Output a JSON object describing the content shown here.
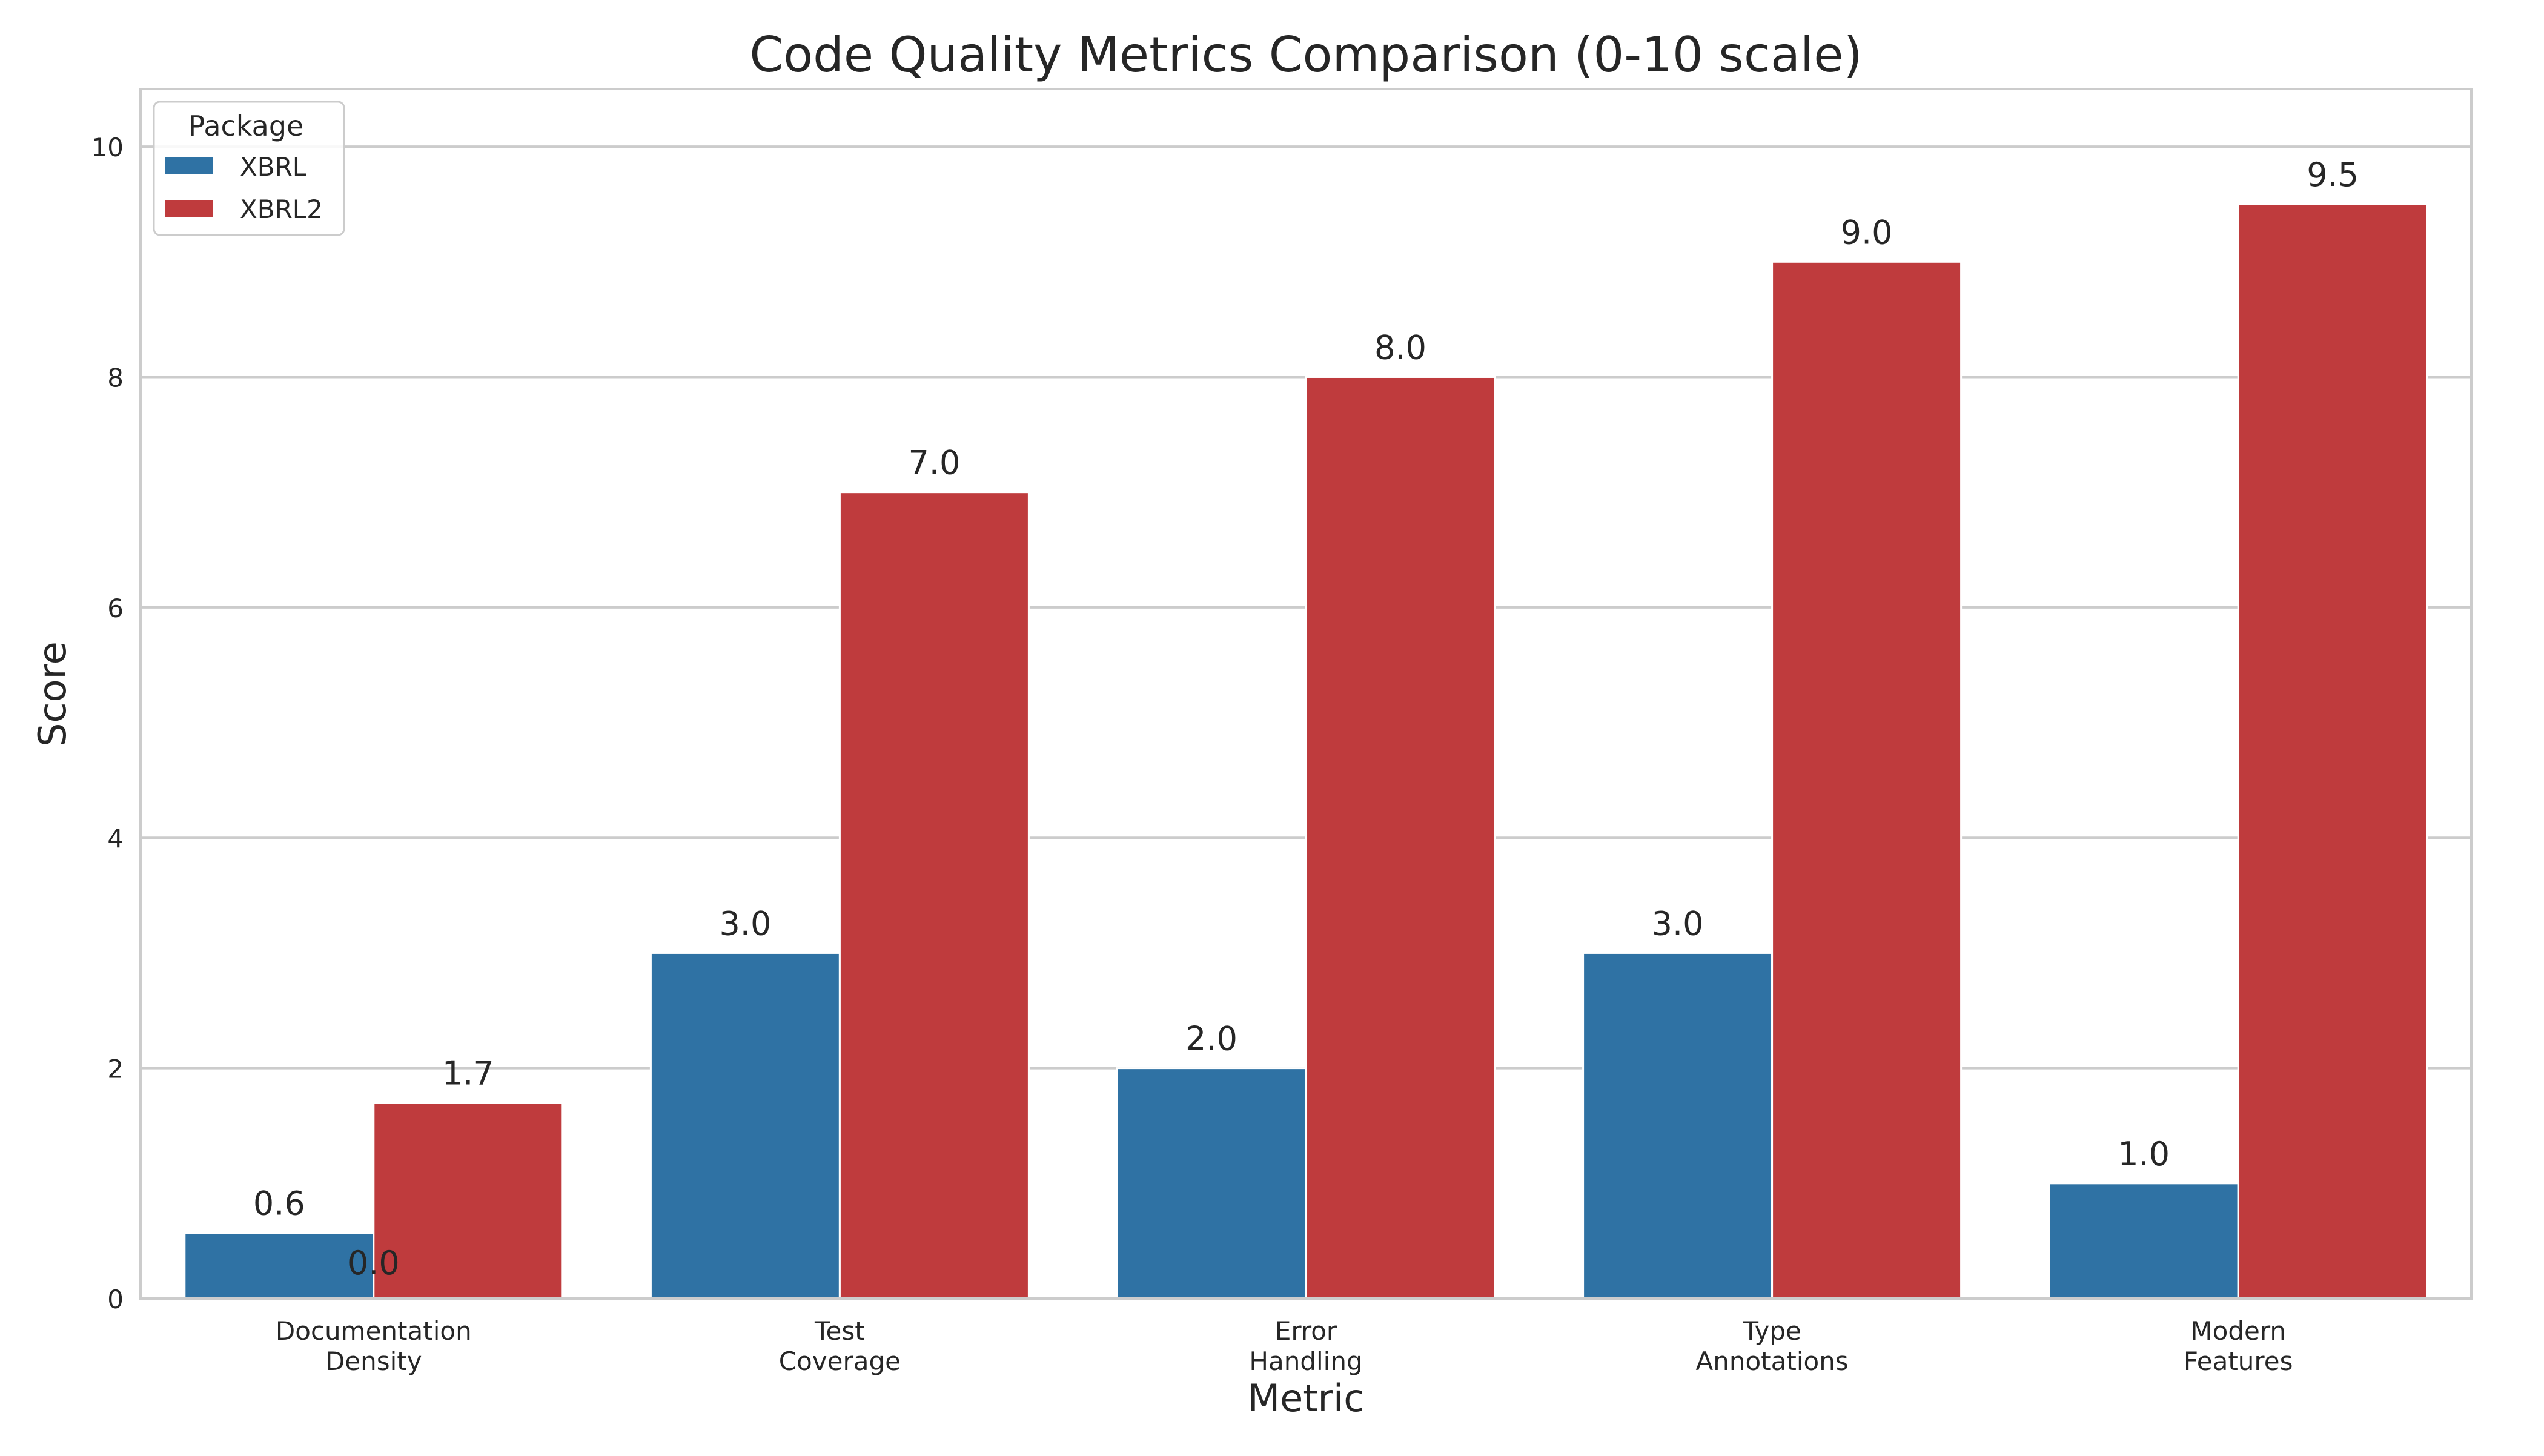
{
  "chart_data": {
    "type": "bar",
    "title": "Code Quality Metrics Comparison (0-10 scale)",
    "xlabel": "Metric",
    "ylabel": "Score",
    "categories": [
      [
        "Documentation",
        "Density"
      ],
      [
        "Test",
        "Coverage"
      ],
      [
        "Error",
        "Handling"
      ],
      [
        "Type",
        "Annotations"
      ],
      [
        "Modern",
        "Features"
      ]
    ],
    "series": [
      {
        "name": "XBRL",
        "color": "#2f72a4",
        "values": [
          0.57,
          3.0,
          2.0,
          3.0,
          1.0
        ],
        "labels": [
          "0.6",
          "3.0",
          "2.0",
          "3.0",
          "1.0"
        ]
      },
      {
        "name": "XBRL2",
        "color": "#bf3b3d",
        "values": [
          1.7,
          7.0,
          8.0,
          9.0,
          9.5
        ],
        "labels": [
          "1.7",
          "7.0",
          "8.0",
          "9.0",
          "9.5"
        ]
      }
    ],
    "extra_annotations": [
      {
        "text": "0.0"
      }
    ],
    "legend": {
      "title": "Package",
      "placement": "top-left"
    },
    "ylim": [
      0,
      10.5
    ],
    "yticks": [
      "0",
      "2",
      "4",
      "6",
      "8",
      "10"
    ],
    "ytick_values": [
      0,
      2,
      4,
      6,
      8,
      10
    ],
    "grid": true
  }
}
